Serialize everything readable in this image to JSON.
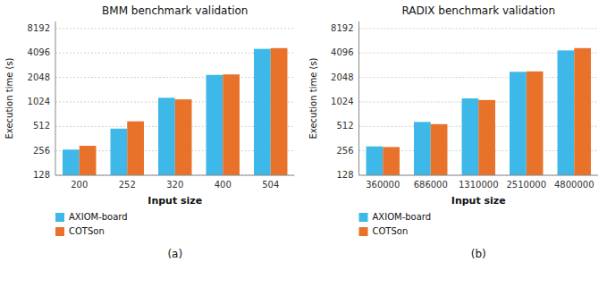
{
  "chart_data": [
    {
      "type": "bar",
      "title": "BMM benchmark validation",
      "xlabel": "Input size",
      "ylabel": "Execution time (s)",
      "categories": [
        "200",
        "252",
        "320",
        "400",
        "504"
      ],
      "series": [
        {
          "name": "AXIOM-board",
          "color": "#3db8e8",
          "values": [
            265,
            480,
            1150,
            2200,
            4600
          ]
        },
        {
          "name": "COTSon",
          "color": "#e8722a",
          "values": [
            295,
            590,
            1100,
            2230,
            4700
          ]
        }
      ],
      "ylim": [
        128,
        10000
      ],
      "yticks": [
        128,
        256,
        512,
        1024,
        2048,
        4096,
        8192
      ],
      "log": "y",
      "grid": true,
      "legend": "bottom",
      "annotations": [
        "(a)"
      ]
    },
    {
      "type": "bar",
      "title": "RADIX benchmark validation",
      "xlabel": "Input size",
      "ylabel": "Execution time (s)",
      "categories": [
        "360000",
        "686000",
        "1310000",
        "2510000",
        "4800000"
      ],
      "series": [
        {
          "name": "AXIOM-board",
          "color": "#3db8e8",
          "values": [
            290,
            580,
            1130,
            2400,
            4400
          ]
        },
        {
          "name": "COTSon",
          "color": "#e8722a",
          "values": [
            285,
            545,
            1080,
            2430,
            4700
          ]
        }
      ],
      "ylim": [
        128,
        10000
      ],
      "yticks": [
        128,
        256,
        512,
        1024,
        2048,
        4096,
        8192
      ],
      "log": "y",
      "grid": true,
      "legend": "bottom",
      "annotations": [
        "(b)"
      ]
    }
  ]
}
